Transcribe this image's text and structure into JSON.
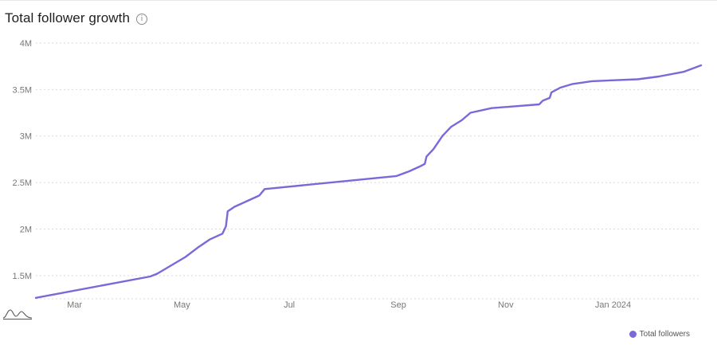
{
  "header": {
    "title": "Total follower growth",
    "info_icon": "info-circle-icon"
  },
  "legend": {
    "label": "Total followers"
  },
  "colors": {
    "series": "#7b68d9",
    "grid": "#d9d9d9",
    "tick_text": "#777777"
  },
  "decorations": {
    "bottom_left_icon": "sparkline-wave-icon"
  },
  "chart_data": {
    "type": "line",
    "title": "Total follower growth",
    "xlabel": "",
    "ylabel": "",
    "x_tick_labels": [
      "Mar",
      "May",
      "Jul",
      "Sep",
      "Nov",
      "Jan 2024"
    ],
    "x_tick_dates": [
      "2023-03-01",
      "2023-05-01",
      "2023-07-01",
      "2023-09-01",
      "2023-11-01",
      "2024-01-01"
    ],
    "xlim": [
      "2023-02-07",
      "2024-02-20"
    ],
    "y_tick_labels": [
      "1.5M",
      "2M",
      "2.5M",
      "3M",
      "3.5M",
      "4M"
    ],
    "y_tick_values": [
      1500000,
      2000000,
      2500000,
      3000000,
      3500000,
      4000000
    ],
    "ylim": [
      1250000,
      4000000
    ],
    "grid": true,
    "legend_position": "bottom-right",
    "series": [
      {
        "name": "Total followers",
        "x": [
          "2023-02-07",
          "2023-04-13",
          "2023-04-17",
          "2023-05-03",
          "2023-05-10",
          "2023-05-17",
          "2023-05-24",
          "2023-05-26",
          "2023-05-27",
          "2023-05-31",
          "2023-06-07",
          "2023-06-14",
          "2023-06-17",
          "2023-08-31",
          "2023-09-07",
          "2023-09-14",
          "2023-09-16",
          "2023-09-17",
          "2023-09-21",
          "2023-09-26",
          "2023-10-01",
          "2023-10-07",
          "2023-10-12",
          "2023-10-24",
          "2023-11-20",
          "2023-11-22",
          "2023-11-26",
          "2023-11-27",
          "2023-12-02",
          "2023-12-09",
          "2023-12-20",
          "2024-01-15",
          "2024-01-27",
          "2024-02-10",
          "2024-02-20"
        ],
        "y": [
          1260000,
          1490000,
          1520000,
          1700000,
          1800000,
          1890000,
          1950000,
          2030000,
          2190000,
          2240000,
          2300000,
          2360000,
          2430000,
          2570000,
          2620000,
          2680000,
          2700000,
          2780000,
          2860000,
          3000000,
          3100000,
          3170000,
          3250000,
          3300000,
          3340000,
          3380000,
          3410000,
          3470000,
          3520000,
          3560000,
          3590000,
          3610000,
          3640000,
          3690000,
          3760000
        ]
      }
    ]
  }
}
